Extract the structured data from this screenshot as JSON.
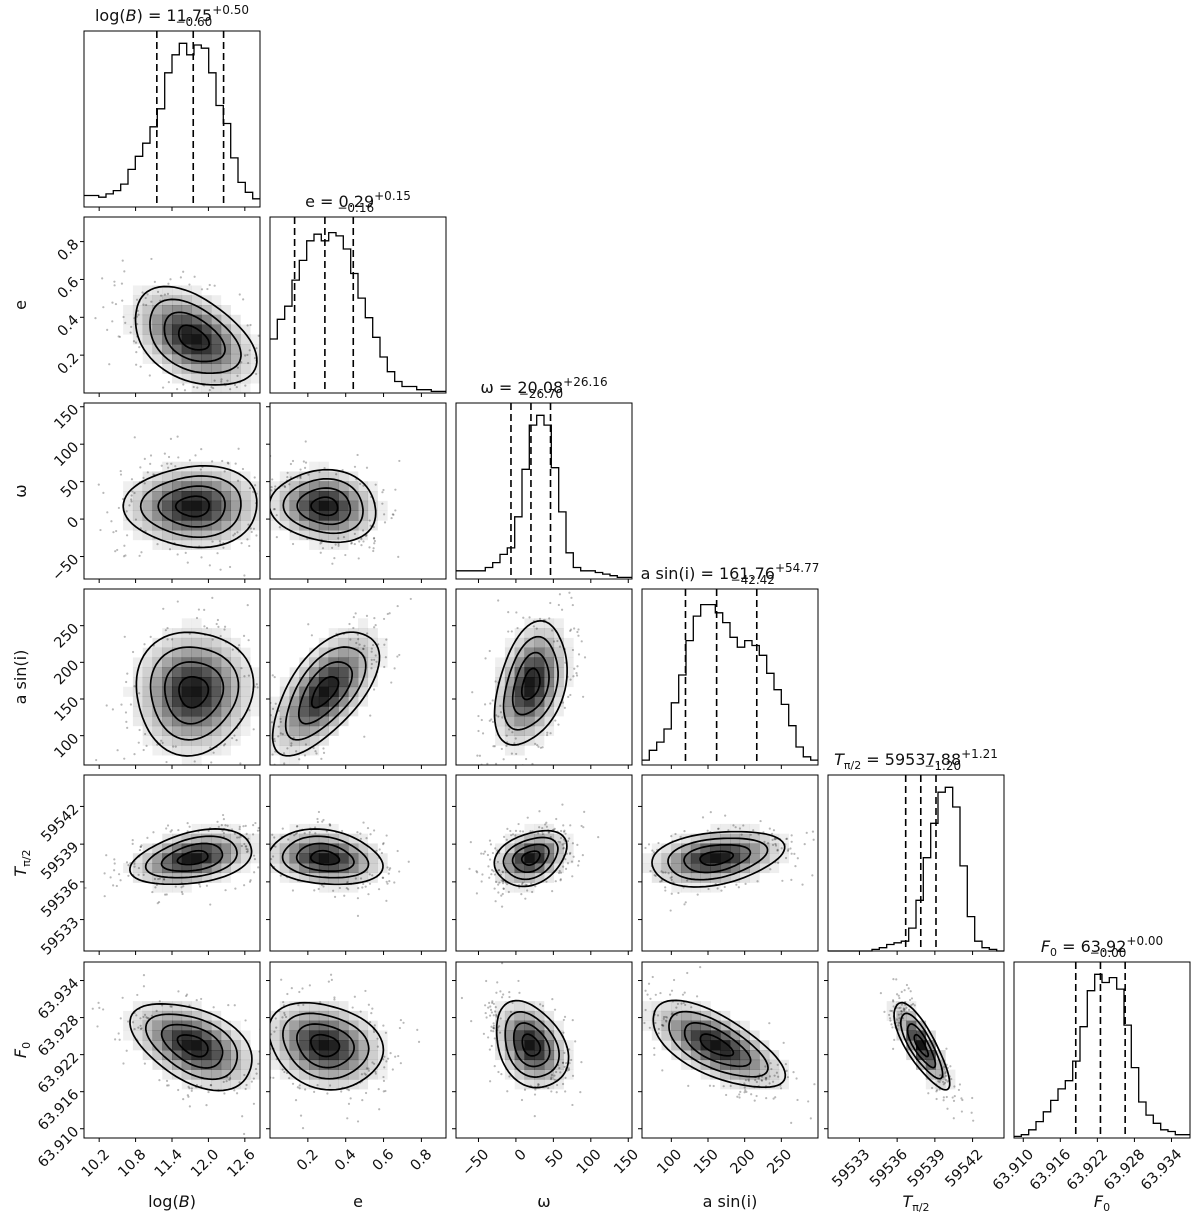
{
  "chart_data": {
    "type": "corner",
    "parameters": [
      {
        "key": "logB",
        "label": "log(B)",
        "label_style": "italic-arg",
        "label_arg": "B",
        "range": [
          9.95,
          12.85
        ],
        "ticks": [
          10.2,
          10.8,
          11.4,
          12.0,
          12.6
        ],
        "tick_labels": [
          "10.2",
          "10.8",
          "11.4",
          "12.0",
          "12.6"
        ],
        "title_value": "11.75",
        "title_plus": "+0.50",
        "title_minus": "−0.60",
        "quantiles": [
          11.15,
          11.75,
          12.25
        ],
        "hist": [
          0.07,
          0.07,
          0.06,
          0.08,
          0.1,
          0.14,
          0.23,
          0.31,
          0.39,
          0.49,
          0.6,
          0.82,
          0.93,
          1.0,
          0.93,
          0.99,
          0.97,
          0.82,
          0.62,
          0.51,
          0.3,
          0.15,
          0.09,
          0.05
        ]
      },
      {
        "key": "e",
        "label": "e",
        "range": [
          0.0,
          0.93
        ],
        "ticks": [
          0.2,
          0.4,
          0.6,
          0.8
        ],
        "tick_labels": [
          "0.2",
          "0.4",
          "0.6",
          "0.8"
        ],
        "title_value": "0.29",
        "title_plus": "+0.15",
        "title_minus": "−0.16",
        "quantiles": [
          0.13,
          0.29,
          0.44
        ],
        "hist": [
          0.33,
          0.45,
          0.53,
          0.69,
          0.81,
          0.93,
          0.97,
          0.93,
          0.98,
          0.96,
          0.88,
          0.73,
          0.58,
          0.46,
          0.34,
          0.22,
          0.13,
          0.07,
          0.04,
          0.04,
          0.02,
          0.02,
          0.01,
          0.01
        ]
      },
      {
        "key": "omega",
        "label": "ω",
        "range": [
          -80,
          155
        ],
        "ticks": [
          -50,
          0,
          50,
          100,
          150
        ],
        "tick_labels": [
          "−50",
          "0",
          "50",
          "100",
          "150"
        ],
        "title_value": "20.08",
        "title_plus": "+26.16",
        "title_minus": "−26.70",
        "quantiles": [
          -6.6,
          20.08,
          46.2
        ],
        "hist": [
          0.05,
          0.05,
          0.05,
          0.05,
          0.07,
          0.1,
          0.15,
          0.19,
          0.38,
          0.67,
          0.94,
          1.0,
          0.94,
          0.68,
          0.41,
          0.16,
          0.07,
          0.05,
          0.05,
          0.04,
          0.03,
          0.02,
          0.01,
          0.01
        ]
      },
      {
        "key": "asini",
        "label": "a sin(i)",
        "range": [
          60,
          300
        ],
        "ticks": [
          100,
          150,
          200,
          250
        ],
        "tick_labels": [
          "100",
          "150",
          "200",
          "250"
        ],
        "title_value": "161.76",
        "title_plus": "+54.77",
        "title_minus": "−42.42",
        "quantiles": [
          119.3,
          161.76,
          216.5
        ],
        "hist": [
          0.03,
          0.09,
          0.14,
          0.22,
          0.38,
          0.55,
          0.76,
          0.91,
          0.98,
          0.98,
          0.93,
          0.87,
          0.78,
          0.72,
          0.76,
          0.73,
          0.67,
          0.56,
          0.46,
          0.37,
          0.24,
          0.11,
          0.05,
          0.03
        ]
      },
      {
        "key": "Tpi2",
        "label": "T_π/2",
        "label_style": "subscript",
        "label_base": "T",
        "label_sub": "π/2",
        "range": [
          59530.5,
          59544.5
        ],
        "ticks": [
          59533,
          59536,
          59539,
          59542
        ],
        "tick_labels": [
          "59533",
          "59536",
          "59539",
          "59542"
        ],
        "title_value": "59537.88",
        "title_plus": "+1.21",
        "title_minus": "−1.20",
        "quantiles": [
          59536.68,
          59537.88,
          59539.09
        ],
        "hist": [
          0.0,
          0.0,
          0.0,
          0.0,
          0.0,
          0.0,
          0.01,
          0.02,
          0.04,
          0.05,
          0.06,
          0.14,
          0.31,
          0.57,
          0.78,
          0.97,
          1.0,
          0.88,
          0.52,
          0.21,
          0.06,
          0.02,
          0.01,
          0.0
        ]
      },
      {
        "key": "F0",
        "label": "F_0",
        "label_style": "subscript",
        "label_base": "F",
        "label_sub": "0",
        "range": [
          63.9085,
          63.937
        ],
        "ticks": [
          63.91,
          63.916,
          63.922,
          63.928,
          63.934
        ],
        "tick_labels": [
          "63.910",
          "63.916",
          "63.922",
          "63.928",
          "63.934"
        ],
        "title_value": "63.92",
        "title_plus": "+0.00",
        "title_minus": "−0.00",
        "quantiles": [
          63.9185,
          63.9225,
          63.9265
        ],
        "hist": [
          0.01,
          0.02,
          0.05,
          0.1,
          0.16,
          0.23,
          0.3,
          0.35,
          0.47,
          0.68,
          0.9,
          1.0,
          0.95,
          0.98,
          0.91,
          0.69,
          0.43,
          0.22,
          0.14,
          0.09,
          0.05,
          0.04,
          0.02,
          0.02
        ]
      }
    ],
    "pairs": [
      {
        "row": 1,
        "col": 0,
        "center": [
          11.75,
          0.29
        ],
        "sigma": [
          0.5,
          0.13
        ],
        "rho": -0.42
      },
      {
        "row": 2,
        "col": 0,
        "center": [
          11.75,
          17
        ],
        "sigma": [
          0.55,
          27
        ],
        "rho": 0.02
      },
      {
        "row": 2,
        "col": 1,
        "center": [
          0.29,
          17
        ],
        "sigma": [
          0.14,
          24
        ],
        "rho": -0.08
      },
      {
        "row": 3,
        "col": 0,
        "center": [
          11.75,
          160
        ],
        "sigma": [
          0.48,
          42
        ],
        "rho": 0.03
      },
      {
        "row": 3,
        "col": 1,
        "center": [
          0.29,
          160
        ],
        "sigma": [
          0.14,
          42
        ],
        "rho": 0.62
      },
      {
        "row": 3,
        "col": 2,
        "center": [
          20,
          170
        ],
        "sigma": [
          24,
          42
        ],
        "rho": 0.35
      },
      {
        "row": 4,
        "col": 0,
        "center": [
          11.75,
          59537.9
        ],
        "sigma": [
          0.5,
          1.1
        ],
        "rho": 0.35
      },
      {
        "row": 4,
        "col": 1,
        "center": [
          0.29,
          59537.9
        ],
        "sigma": [
          0.15,
          1.1
        ],
        "rho": -0.18
      },
      {
        "row": 4,
        "col": 2,
        "center": [
          20,
          59537.9
        ],
        "sigma": [
          24,
          1.1
        ],
        "rho": 0.3
      },
      {
        "row": 4,
        "col": 3,
        "center": [
          161,
          59537.9
        ],
        "sigma": [
          45,
          1.1
        ],
        "rho": 0.3
      },
      {
        "row": 5,
        "col": 0,
        "center": [
          11.75,
          63.9235
        ],
        "sigma": [
          0.5,
          0.0035
        ],
        "rho": -0.45
      },
      {
        "row": 5,
        "col": 1,
        "center": [
          0.29,
          63.9235
        ],
        "sigma": [
          0.15,
          0.0035
        ],
        "rho": -0.2
      },
      {
        "row": 5,
        "col": 2,
        "center": [
          20,
          63.9235
        ],
        "sigma": [
          24,
          0.0035
        ],
        "rho": -0.3
      },
      {
        "row": 5,
        "col": 3,
        "center": [
          161,
          63.9235
        ],
        "sigma": [
          45,
          0.0035
        ],
        "rho": -0.65
      },
      {
        "row": 5,
        "col": 4,
        "center": [
          59537.9,
          63.9235
        ],
        "sigma": [
          1.1,
          0.0035
        ],
        "rho": -0.8
      }
    ],
    "contour_levels_sigma": [
      0.5,
      1.0,
      1.5,
      2.0
    ],
    "colors": {
      "line": "#000000",
      "density": "#000000",
      "points": "#000000"
    }
  }
}
